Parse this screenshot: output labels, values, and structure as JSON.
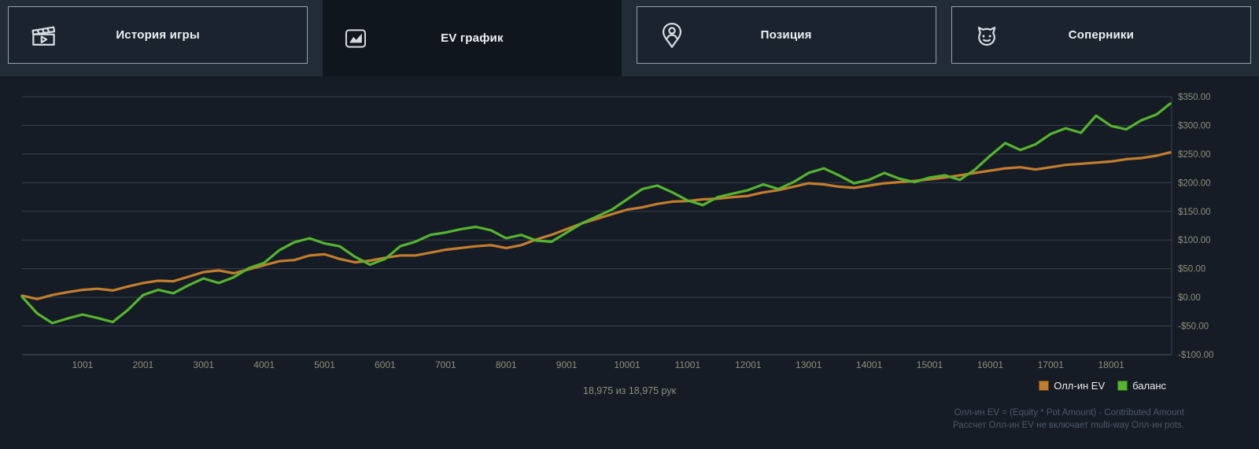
{
  "tabs": [
    {
      "label": "История игры",
      "icon": "clapperboard-icon",
      "active": false
    },
    {
      "label": "EV график",
      "icon": "line-chart-icon",
      "active": true
    },
    {
      "label": "Позиция",
      "icon": "position-pin-icon",
      "active": false
    },
    {
      "label": "Соперники",
      "icon": "opponent-imp-icon",
      "active": false
    }
  ],
  "status": {
    "hands_text": "18,975 из 18,975 рук"
  },
  "legend": [
    {
      "label": "Олл-ин EV",
      "color": "#c47d2c"
    },
    {
      "label": "баланс",
      "color": "#55b52e"
    }
  ],
  "footnotes": [
    "Олл-ин EV = (Equity * Pot Amount) - Contributed Amount",
    "Рассчет Олл-ин EV не включает multi-way Олл-ин pots."
  ],
  "colors": {
    "background": "#151c26",
    "header": "#222c37",
    "tab_active": "#0f161e",
    "tab_inactive": "#1a232e",
    "grid": "#39424d",
    "axis_line": "#4d5662",
    "axis_text": "#8f9077",
    "ev_line": "#c47d2c",
    "balance_line": "#55b52e"
  },
  "chart_data": {
    "type": "line",
    "title": "",
    "xlabel": "",
    "ylabel": "",
    "xlim": [
      0,
      19000
    ],
    "ylim": [
      -100,
      350
    ],
    "grid": "horizontal",
    "legend_position": "bottom-right",
    "x": [
      0,
      250,
      500,
      750,
      1000,
      1250,
      1500,
      1750,
      2000,
      2250,
      2500,
      2750,
      3000,
      3250,
      3500,
      3750,
      4000,
      4250,
      4500,
      4750,
      5000,
      5250,
      5500,
      5750,
      6000,
      6250,
      6500,
      6750,
      7000,
      7250,
      7500,
      7750,
      8000,
      8250,
      8500,
      8750,
      9000,
      9250,
      9500,
      9750,
      10000,
      10250,
      10500,
      10750,
      11000,
      11250,
      11500,
      11750,
      12000,
      12250,
      12500,
      12750,
      13000,
      13250,
      13500,
      13750,
      14000,
      14250,
      14500,
      14750,
      15000,
      15250,
      15500,
      15750,
      16000,
      16250,
      16500,
      16750,
      17000,
      17250,
      17500,
      17750,
      18000,
      18250,
      18500,
      18750,
      18975
    ],
    "series": [
      {
        "name": "Олл-ин EV",
        "color": "#c47d2c",
        "values": [
          3,
          -3,
          4,
          9,
          13,
          15,
          12,
          19,
          25,
          29,
          28,
          36,
          44,
          47,
          42,
          49,
          56,
          63,
          65,
          73,
          75,
          67,
          61,
          64,
          69,
          73,
          73,
          78,
          83,
          86,
          89,
          91,
          86,
          91,
          101,
          109,
          119,
          129,
          137,
          145,
          153,
          157,
          163,
          167,
          168,
          171,
          172,
          175,
          177,
          183,
          187,
          193,
          199,
          197,
          193,
          191,
          195,
          199,
          201,
          203,
          206,
          209,
          213,
          217,
          221,
          225,
          227,
          223,
          227,
          231,
          233,
          235,
          237,
          241,
          243,
          247,
          253
        ]
      },
      {
        "name": "баланс",
        "color": "#55b52e",
        "values": [
          1,
          -28,
          -45,
          -37,
          -30,
          -36,
          -43,
          -22,
          4,
          13,
          7,
          21,
          33,
          25,
          35,
          51,
          60,
          82,
          96,
          103,
          94,
          89,
          71,
          57,
          67,
          89,
          97,
          109,
          113,
          119,
          123,
          117,
          103,
          109,
          99,
          97,
          113,
          129,
          141,
          153,
          171,
          189,
          195,
          183,
          169,
          161,
          175,
          181,
          187,
          197,
          189,
          201,
          217,
          225,
          213,
          199,
          205,
          217,
          207,
          201,
          209,
          213,
          205,
          223,
          247,
          269,
          257,
          267,
          285,
          295,
          287,
          317,
          299,
          293,
          309,
          319,
          338
        ]
      }
    ],
    "x_ticks": [
      {
        "value": 1001,
        "label": "1001"
      },
      {
        "value": 2001,
        "label": "2001"
      },
      {
        "value": 3001,
        "label": "3001"
      },
      {
        "value": 4001,
        "label": "4001"
      },
      {
        "value": 5001,
        "label": "5001"
      },
      {
        "value": 6001,
        "label": "6001"
      },
      {
        "value": 7001,
        "label": "7001"
      },
      {
        "value": 8001,
        "label": "8001"
      },
      {
        "value": 9001,
        "label": "9001"
      },
      {
        "value": 10001,
        "label": "10001"
      },
      {
        "value": 11001,
        "label": "11001"
      },
      {
        "value": 12001,
        "label": "12001"
      },
      {
        "value": 13001,
        "label": "13001"
      },
      {
        "value": 14001,
        "label": "14001"
      },
      {
        "value": 15001,
        "label": "15001"
      },
      {
        "value": 16001,
        "label": "16001"
      },
      {
        "value": 17001,
        "label": "17001"
      },
      {
        "value": 18001,
        "label": "18001"
      }
    ],
    "y_ticks": [
      {
        "value": 350,
        "label": "$350.00"
      },
      {
        "value": 300,
        "label": "$300.00"
      },
      {
        "value": 250,
        "label": "$250.00"
      },
      {
        "value": 200,
        "label": "$200.00"
      },
      {
        "value": 150,
        "label": "$150.00"
      },
      {
        "value": 100,
        "label": "$100.00"
      },
      {
        "value": 50,
        "label": "$50.00"
      },
      {
        "value": 0,
        "label": "$0.00"
      },
      {
        "value": -50,
        "label": "-$50.00"
      },
      {
        "value": -100,
        "label": "-$100.00"
      }
    ]
  }
}
